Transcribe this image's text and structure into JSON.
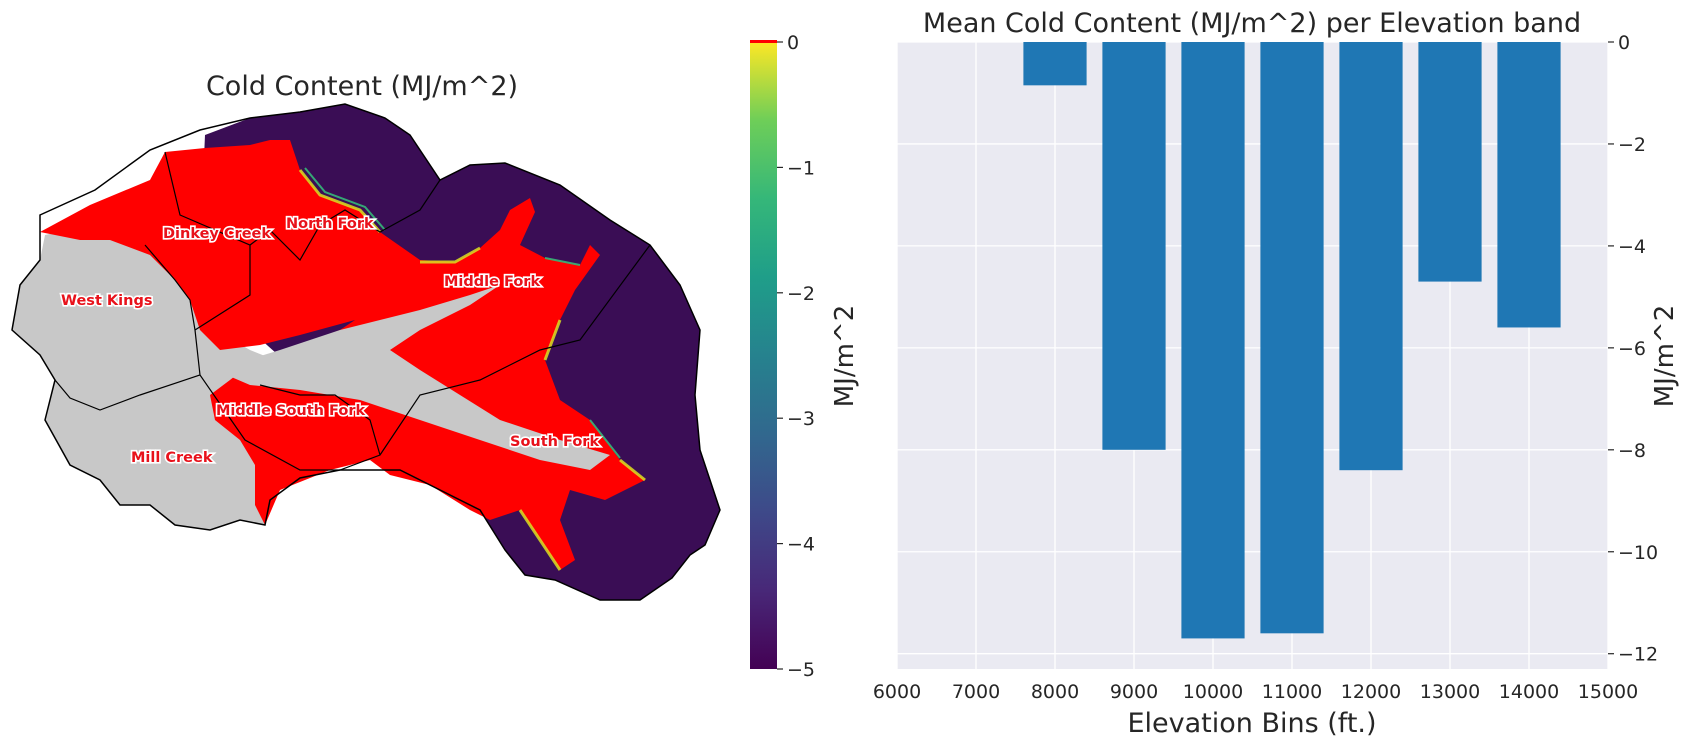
{
  "colors": {
    "cold_content_zero": "#ff0000",
    "no_snow": "#c8c8c8",
    "bar": "#1f77b4",
    "plot_background": "#eaeaf2",
    "grid": "#ffffff",
    "basin_outline": "#000000"
  },
  "map": {
    "title": "Cold Content (MJ/m^2)",
    "colorbar": {
      "label": "MJ/m^2",
      "colormap": "viridis",
      "range": [
        -5,
        0
      ],
      "ticks": [
        "0",
        "−1",
        "−2",
        "−3",
        "−4",
        "−5"
      ],
      "over_color": "#ff0000"
    },
    "subbasins": [
      "Dinkey Creek",
      "North Fork",
      "West Kings",
      "Middle Fork",
      "Middle South Fork",
      "Mill Creek",
      "South Fork"
    ]
  },
  "chart_data": {
    "type": "bar",
    "title": "Mean Cold Content (MJ/m^2) per Elevation band",
    "xlabel": "Elevation Bins (ft.)",
    "ylabel": "MJ/m^2",
    "x": [
      8000,
      9000,
      10000,
      11000,
      12000,
      13000,
      14000
    ],
    "values": [
      -0.85,
      -8.0,
      -11.7,
      -11.6,
      -8.4,
      -4.7,
      -5.6
    ],
    "xlim": [
      6000,
      15000
    ],
    "ylim": [
      -12.3,
      0
    ],
    "xticks": [
      6000,
      7000,
      8000,
      9000,
      10000,
      11000,
      12000,
      13000,
      14000,
      15000
    ],
    "yticks": [
      0,
      -2,
      -4,
      -6,
      -8,
      -10,
      -12
    ],
    "ytick_labels": [
      "0",
      "−2",
      "−4",
      "−6",
      "−8",
      "−10",
      "−12"
    ],
    "y_axis_position": "right",
    "grid": true
  }
}
